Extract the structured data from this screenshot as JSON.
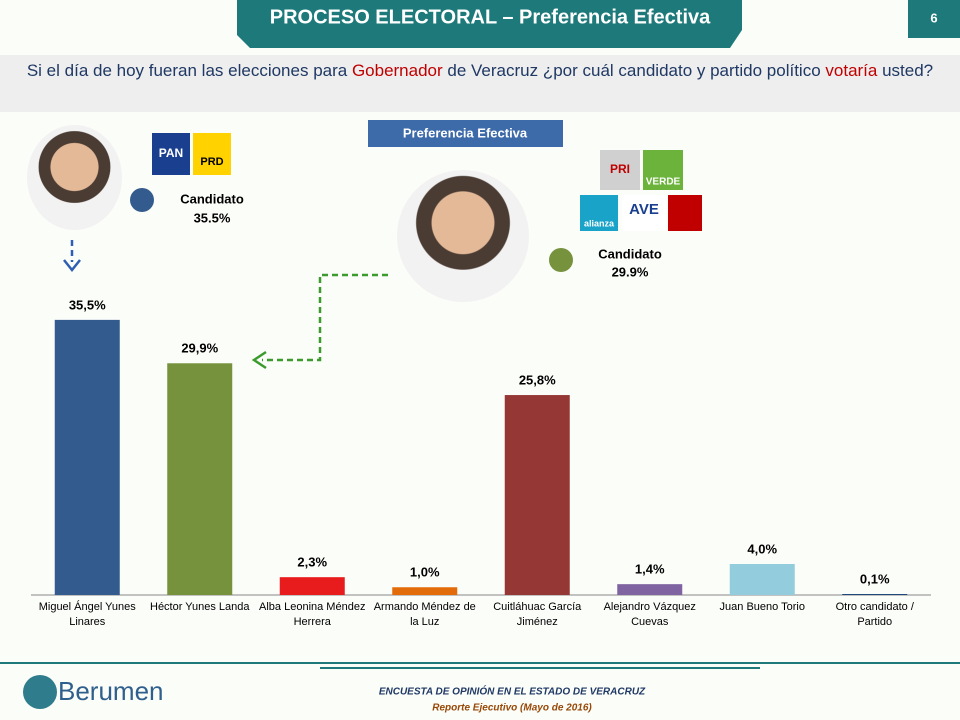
{
  "header": {
    "title": "PROCESO ELECTORAL – Preferencia Efectiva",
    "page": "6"
  },
  "question": {
    "parts": [
      "Si el día de hoy fueran las elecciones para ",
      "Gobernador",
      " de Veracruz ¿por cuál candidato y partido político ",
      "votaría",
      " usted?"
    ]
  },
  "candidates": [
    {
      "label": "Candidato",
      "value": "35.5%",
      "logos": [
        "PAN",
        "PRD"
      ]
    },
    {
      "label": "Candidato",
      "value": "29.9%",
      "logos": [
        "PRI",
        "VERDE",
        "alianza",
        "AVE"
      ]
    }
  ],
  "chart_data": {
    "type": "bar",
    "title": "Preferencia Efectiva",
    "categories": [
      "Miguel Ángel Yunes Linares",
      "Héctor Yunes Landa",
      "Alba Leonina Méndez Herrera",
      "Armando Méndez de la Luz",
      "Cuitláhuac García Jiménez",
      "Alejandro Vázquez Cuevas",
      "Juan Bueno Torio",
      "Otro candidato / Partido"
    ],
    "values": [
      35.5,
      29.9,
      2.3,
      1.0,
      25.8,
      1.4,
      4.0,
      0.1
    ],
    "value_labels": [
      "35,5%",
      "29,9%",
      "2,3%",
      "1,0%",
      "25,8%",
      "1,4%",
      "4,0%",
      "0,1%"
    ],
    "colors": [
      "#335b8e",
      "#76923c",
      "#e81c1c",
      "#e36c0a",
      "#953735",
      "#8064a2",
      "#93cddd",
      "#1f497d"
    ]
  },
  "footer": {
    "brand": "Berumen",
    "line1": "ENCUESTA DE OPINIÓN EN EL ESTADO DE VERACRUZ",
    "line2": "Reporte Ejecutivo  (Mayo de 2016)"
  }
}
